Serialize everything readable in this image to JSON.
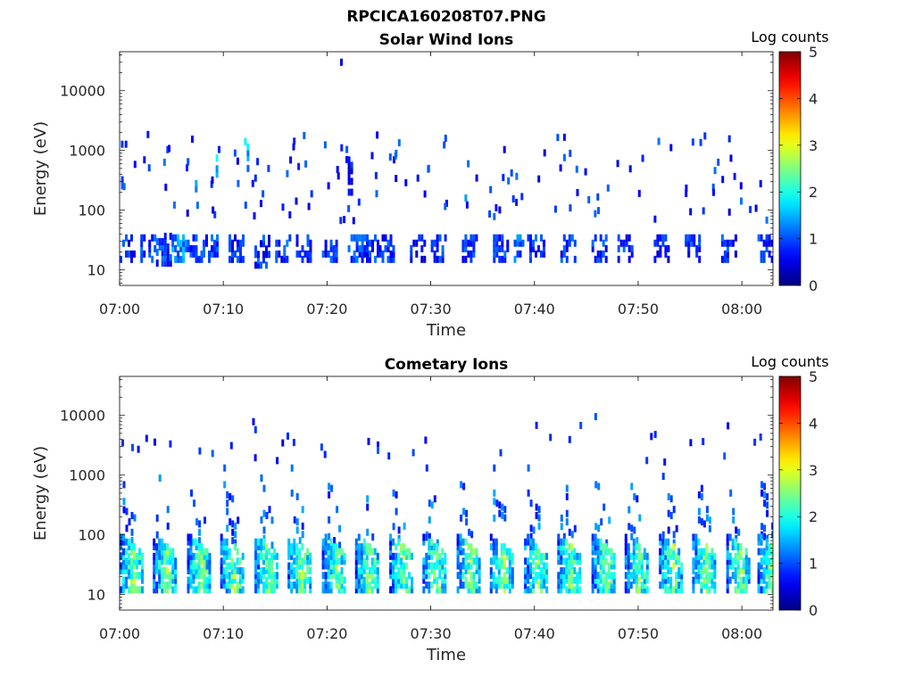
{
  "figure_title": "RPCICA160208T07.PNG",
  "chart_data": [
    {
      "type": "heatmap",
      "title": "Solar Wind Ions",
      "xlabel": "Time",
      "ylabel": "Energy (eV)",
      "x_range": [
        "07:00",
        "08:03"
      ],
      "x_ticks": [
        "07:00",
        "07:10",
        "07:20",
        "07:30",
        "07:40",
        "07:50",
        "08:00"
      ],
      "y_scale": "log",
      "y_range": [
        5.5,
        45000
      ],
      "y_ticks": [
        {
          "value": 10,
          "label": "10"
        },
        {
          "value": 100,
          "label": "100"
        },
        {
          "value": 1000,
          "label": "1000"
        },
        {
          "value": 10000,
          "label": "10000"
        }
      ],
      "colorbar": {
        "label": "Log counts",
        "range": [
          0,
          5
        ],
        "ticks": [
          "0",
          "1",
          "2",
          "3",
          "4",
          "5"
        ],
        "colormap": "jet"
      },
      "grid": false,
      "cells": [
        {
          "t": "07:00",
          "e_min": 15,
          "e_max": 35,
          "v": 0.7
        },
        {
          "t": "07:02",
          "e_min": 15,
          "e_max": 35,
          "v": 0.8
        },
        {
          "t": "07:03.5",
          "e_min": 13,
          "e_max": 40,
          "v": 0.8
        },
        {
          "t": "07:05",
          "e_min": 15,
          "e_max": 35,
          "v": 1.3
        },
        {
          "t": "07:06.5",
          "e_min": 15,
          "e_max": 35,
          "v": 0.9
        },
        {
          "t": "07:08",
          "e_min": 15,
          "e_max": 35,
          "v": 1.0
        },
        {
          "t": "07:10.5",
          "e_min": 15,
          "e_max": 35,
          "v": 0.8
        },
        {
          "t": "07:13",
          "e_min": 12,
          "e_max": 35,
          "v": 0.8
        },
        {
          "t": "07:15",
          "e_min": 15,
          "e_max": 35,
          "v": 0.9
        },
        {
          "t": "07:17",
          "e_min": 15,
          "e_max": 35,
          "v": 0.8
        },
        {
          "t": "07:19.5",
          "e_min": 15,
          "e_max": 35,
          "v": 0.8
        },
        {
          "t": "07:22",
          "e_min": 15,
          "e_max": 35,
          "v": 0.9
        },
        {
          "t": "07:23.5",
          "e_min": 15,
          "e_max": 35,
          "v": 0.8
        },
        {
          "t": "07:25",
          "e_min": 15,
          "e_max": 35,
          "v": 0.8
        },
        {
          "t": "07:28",
          "e_min": 15,
          "e_max": 35,
          "v": 0.7
        },
        {
          "t": "07:30",
          "e_min": 15,
          "e_max": 35,
          "v": 0.8
        },
        {
          "t": "07:33",
          "e_min": 15,
          "e_max": 35,
          "v": 0.8
        },
        {
          "t": "07:36",
          "e_min": 15,
          "e_max": 35,
          "v": 0.9
        },
        {
          "t": "07:38",
          "e_min": 15,
          "e_max": 35,
          "v": 1.1
        },
        {
          "t": "07:39.5",
          "e_min": 15,
          "e_max": 35,
          "v": 0.8
        },
        {
          "t": "07:42.5",
          "e_min": 15,
          "e_max": 35,
          "v": 0.8
        },
        {
          "t": "07:45.5",
          "e_min": 15,
          "e_max": 35,
          "v": 0.8
        },
        {
          "t": "07:48",
          "e_min": 15,
          "e_max": 35,
          "v": 0.8
        },
        {
          "t": "07:51.5",
          "e_min": 15,
          "e_max": 35,
          "v": 0.7
        },
        {
          "t": "07:54.5",
          "e_min": 15,
          "e_max": 35,
          "v": 0.8
        },
        {
          "t": "07:58",
          "e_min": 15,
          "e_max": 35,
          "v": 0.8
        },
        {
          "t": "08:01.5",
          "e_min": 15,
          "e_max": 35,
          "v": 0.8
        },
        {
          "t": "07:09",
          "e_min": 400,
          "e_max": 900,
          "v": 1.7
        },
        {
          "t": "07:12",
          "e_min": 500,
          "e_max": 1800,
          "v": 1.5
        },
        {
          "t": "07:07",
          "e_min": 150,
          "e_max": 300,
          "v": 1.1
        },
        {
          "t": "07:22",
          "e_min": 200,
          "e_max": 700,
          "v": 0.7
        },
        {
          "t": "07:33",
          "e_min": 160,
          "e_max": 240,
          "v": 1.0
        },
        {
          "t": "07:21",
          "e_min": 30000,
          "e_max": 33000,
          "v": 0.6
        }
      ]
    },
    {
      "type": "heatmap",
      "title": "Cometary Ions",
      "xlabel": "Time",
      "ylabel": "Energy (eV)",
      "x_range": [
        "07:00",
        "08:03"
      ],
      "x_ticks": [
        "07:00",
        "07:10",
        "07:20",
        "07:30",
        "07:40",
        "07:50",
        "08:00"
      ],
      "y_scale": "log",
      "y_range": [
        5.5,
        45000
      ],
      "y_ticks": [
        {
          "value": 10,
          "label": "10"
        },
        {
          "value": 100,
          "label": "100"
        },
        {
          "value": 1000,
          "label": "1000"
        },
        {
          "value": 10000,
          "label": "10000"
        }
      ],
      "colorbar": {
        "label": "Log counts",
        "range": [
          0,
          5
        ],
        "ticks": [
          "0",
          "1",
          "2",
          "3",
          "4",
          "5"
        ],
        "colormap": "jet"
      },
      "grid": false,
      "bursts_start": [
        "07:00",
        "07:03.2",
        "07:06.5",
        "07:09.7",
        "07:13",
        "07:16.2",
        "07:19.5",
        "07:22.7",
        "07:26",
        "07:29.2",
        "07:32.5",
        "07:35.7",
        "07:39",
        "07:42.2",
        "07:45.5",
        "07:48.7",
        "07:52",
        "07:55.2",
        "07:58.5",
        "08:01.5"
      ],
      "burst_peak_log_counts": 2.4,
      "burst_energy_low": [
        12,
        40
      ],
      "burst_energy_high": [
        40,
        1500
      ]
    }
  ]
}
